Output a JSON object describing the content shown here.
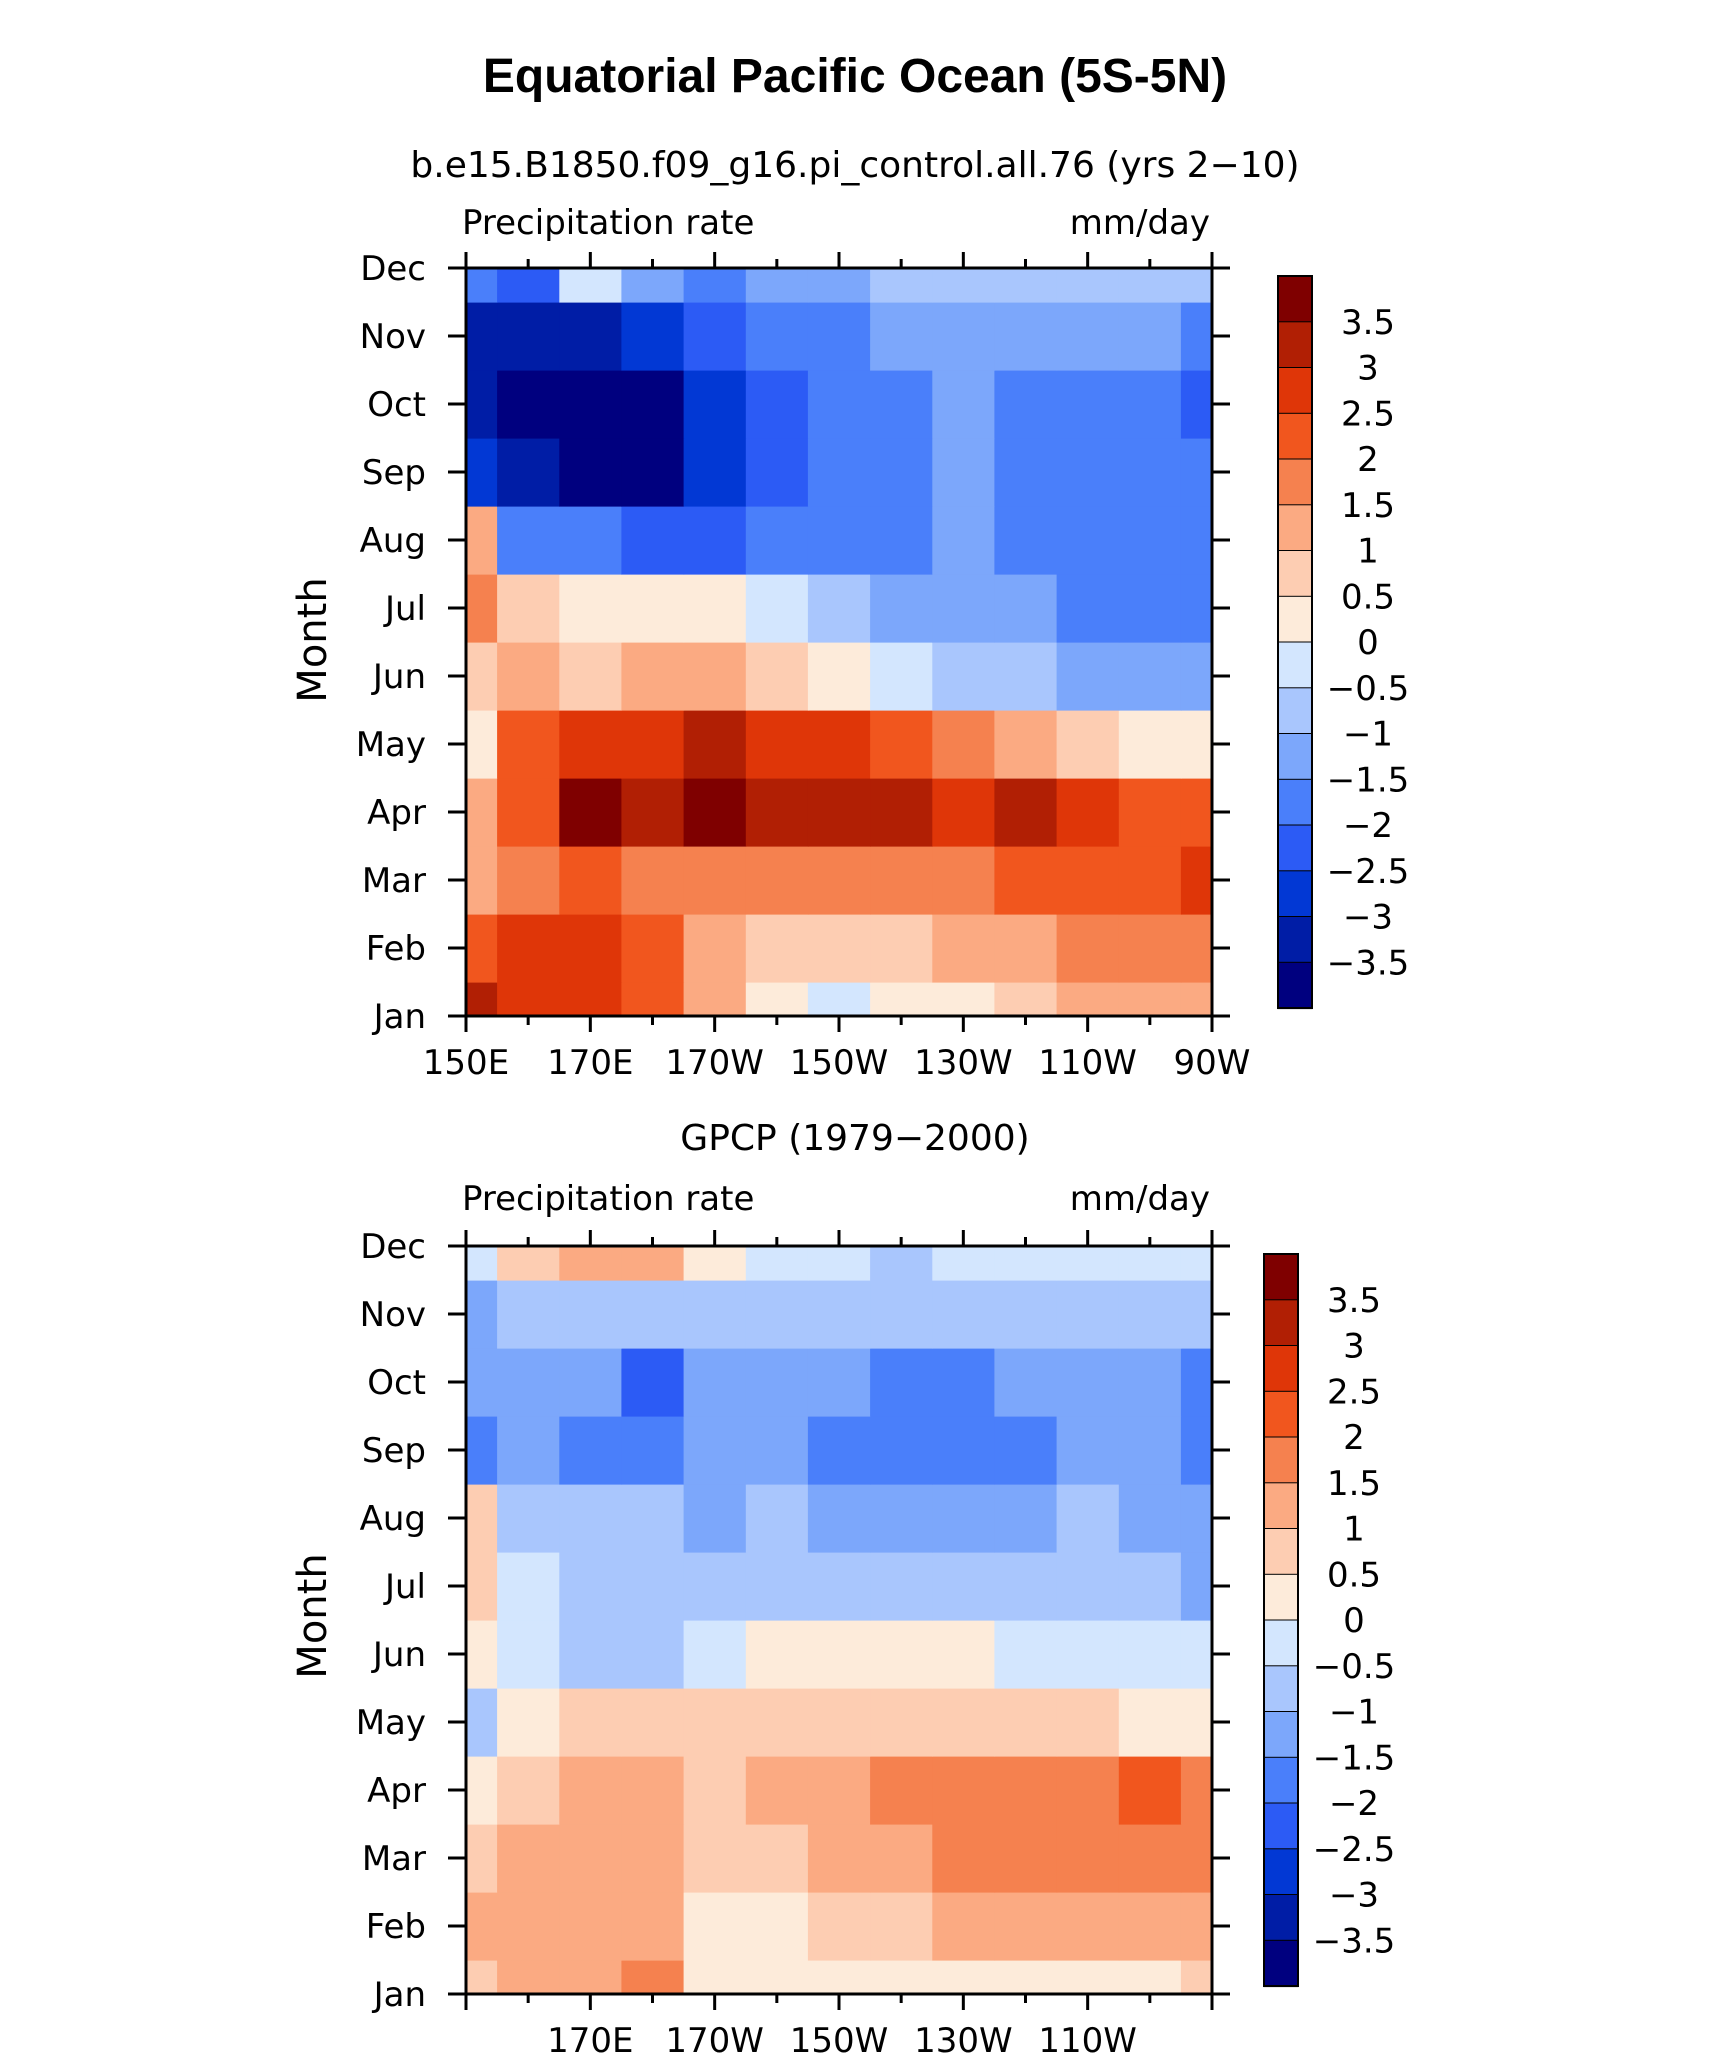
{
  "title": "Equatorial Pacific Ocean (5S-5N)",
  "colormap": {
    "colors": [
      "#00007f",
      "#001da6",
      "#0238d4",
      "#2c5bf5",
      "#4a7ffa",
      "#7ca7fb",
      "#a9c6fd",
      "#d3e6fe",
      "#fdebda",
      "#fdcdb2",
      "#fbaa82",
      "#f5814f",
      "#f1561e",
      "#df3608",
      "#b11f04",
      "#7f0000"
    ],
    "labels": [
      "3.5",
      "3",
      "2.5",
      "2",
      "1.5",
      "1",
      "0.5",
      "0",
      "−0.5",
      "−1",
      "−1.5",
      "−2",
      "−2.5",
      "−3",
      "−3.5"
    ]
  },
  "chart_data": [
    {
      "type": "heatmap",
      "title": "b.e15.B1850.f09_g16.pi_control.all.76 (yrs 2−10)",
      "left_label": "Precipitation rate",
      "right_label": "mm/day",
      "ylabel": "Month",
      "xlabel": "",
      "x_ticks": [
        "150E",
        "170E",
        "170W",
        "150W",
        "130W",
        "110W",
        "90W"
      ],
      "y_ticks": [
        "Jan",
        "Feb",
        "Mar",
        "Apr",
        "May",
        "Jun",
        "Jul",
        "Aug",
        "Sep",
        "Oct",
        "Nov",
        "Dec"
      ],
      "xlim": [
        150,
        270
      ],
      "ylim": [
        1,
        12
      ],
      "x": [
        150,
        160,
        170,
        180,
        190,
        200,
        210,
        220,
        230,
        240,
        250,
        260,
        270
      ],
      "y": [
        "Jan",
        "Feb",
        "Mar",
        "Apr",
        "May",
        "Jun",
        "Jul",
        "Aug",
        "Sep",
        "Oct",
        "Nov",
        "Dec"
      ],
      "z": [
        [
          3.2,
          2.9,
          2.6,
          2.0,
          1.0,
          0.2,
          -0.2,
          0.0,
          0.4,
          0.8,
          1.0,
          1.2,
          1.3
        ],
        [
          2.0,
          2.6,
          2.8,
          2.0,
          1.2,
          0.6,
          0.6,
          0.8,
          1.0,
          1.2,
          1.5,
          1.7,
          1.8
        ],
        [
          1.2,
          1.8,
          2.3,
          1.7,
          1.8,
          1.6,
          1.6,
          1.7,
          1.8,
          2.0,
          2.2,
          2.3,
          2.6
        ],
        [
          1.4,
          2.3,
          3.7,
          3.2,
          3.8,
          3.4,
          3.2,
          3.0,
          2.9,
          3.1,
          2.6,
          2.2,
          2.4
        ],
        [
          0.3,
          2.3,
          2.9,
          2.8,
          3.0,
          2.9,
          2.6,
          2.2,
          1.8,
          1.2,
          0.9,
          0.4,
          0.2
        ],
        [
          0.8,
          1.3,
          0.9,
          1.4,
          1.2,
          0.8,
          0.4,
          -0.2,
          -0.7,
          -1.0,
          -1.2,
          -1.3,
          -1.3
        ],
        [
          1.6,
          0.6,
          0.3,
          0.4,
          0.3,
          -0.4,
          -0.8,
          -1.1,
          -1.3,
          -1.5,
          -1.6,
          -1.6,
          -2.0
        ],
        [
          1.0,
          -1.6,
          -1.9,
          -2.1,
          -2.3,
          -2.0,
          -1.6,
          -1.6,
          -1.5,
          -1.6,
          -1.6,
          -1.7,
          -1.9
        ],
        [
          -2.6,
          -3.4,
          -3.8,
          -3.6,
          -2.9,
          -2.2,
          -1.8,
          -1.6,
          -1.5,
          -1.6,
          -1.6,
          -1.7,
          -1.8
        ],
        [
          -3.4,
          -3.9,
          -4.0,
          -3.6,
          -2.8,
          -2.2,
          -1.9,
          -1.6,
          -1.5,
          -1.6,
          -1.7,
          -1.8,
          -2.1
        ],
        [
          -3.2,
          -3.4,
          -3.3,
          -2.9,
          -2.4,
          -2.0,
          -1.8,
          -1.5,
          -1.3,
          -1.2,
          -1.2,
          -1.3,
          -1.6
        ],
        [
          -1.8,
          -2.1,
          -0.2,
          -1.3,
          -1.6,
          -1.4,
          -1.1,
          -0.9,
          -0.8,
          -0.8,
          -0.8,
          -0.7,
          -0.6
        ]
      ]
    },
    {
      "type": "heatmap",
      "title": "GPCP (1979−2000)",
      "left_label": "Precipitation rate",
      "right_label": "mm/day",
      "ylabel": "Month",
      "xlabel": "",
      "x_ticks": [
        "170E",
        "170W",
        "150W",
        "130W",
        "110W"
      ],
      "y_ticks": [
        "Jan",
        "Feb",
        "Mar",
        "Apr",
        "May",
        "Jun",
        "Jul",
        "Aug",
        "Sep",
        "Oct",
        "Nov",
        "Dec"
      ],
      "xlim": [
        150,
        270
      ],
      "ylim": [
        1,
        12
      ],
      "x": [
        150,
        160,
        170,
        180,
        190,
        200,
        210,
        220,
        230,
        240,
        250,
        260,
        270
      ],
      "y": [
        "Jan",
        "Feb",
        "Mar",
        "Apr",
        "May",
        "Jun",
        "Jul",
        "Aug",
        "Sep",
        "Oct",
        "Nov",
        "Dec"
      ],
      "z": [
        [
          0.8,
          1.0,
          1.2,
          1.8,
          0.3,
          0.2,
          0.1,
          0.2,
          0.3,
          0.3,
          0.4,
          0.4,
          0.5
        ],
        [
          1.2,
          1.3,
          1.1,
          1.3,
          0.4,
          0.4,
          0.7,
          0.9,
          1.0,
          1.1,
          1.2,
          1.3,
          1.4
        ],
        [
          0.9,
          1.1,
          1.2,
          1.3,
          0.5,
          0.7,
          1.2,
          1.4,
          1.6,
          1.8,
          1.7,
          1.9,
          1.7
        ],
        [
          0.4,
          0.9,
          1.3,
          1.2,
          0.8,
          1.0,
          1.2,
          1.6,
          1.7,
          1.9,
          1.7,
          2.0,
          1.6
        ],
        [
          -0.6,
          0.3,
          0.5,
          0.5,
          0.7,
          0.9,
          0.9,
          0.9,
          0.8,
          0.7,
          0.5,
          0.3,
          0.2
        ],
        [
          0.3,
          -0.2,
          -0.6,
          -0.8,
          -0.5,
          0.1,
          0.2,
          0.2,
          0.0,
          -0.2,
          -0.3,
          -0.4,
          -0.5
        ],
        [
          0.6,
          -0.3,
          -0.7,
          -0.9,
          -0.8,
          -0.6,
          -0.6,
          -0.7,
          -0.8,
          -0.9,
          -0.9,
          -1.0,
          -1.3
        ],
        [
          0.8,
          -0.8,
          -1.0,
          -1.0,
          -1.1,
          -1.0,
          -1.2,
          -1.4,
          -1.4,
          -1.3,
          -1.0,
          -1.2,
          -1.5
        ],
        [
          -1.6,
          -1.3,
          -1.6,
          -2.0,
          -1.3,
          -1.2,
          -1.6,
          -1.6,
          -1.6,
          -1.6,
          -1.1,
          -1.4,
          -1.6
        ],
        [
          -1.2,
          -1.2,
          -1.3,
          -2.1,
          -1.3,
          -1.1,
          -1.4,
          -1.6,
          -1.6,
          -1.4,
          -1.1,
          -1.5,
          -1.6
        ],
        [
          -1.1,
          -1.0,
          -0.8,
          -0.9,
          -0.9,
          -0.8,
          -0.8,
          -0.7,
          -0.7,
          -0.7,
          -0.7,
          -0.8,
          -1.0
        ],
        [
          -0.4,
          0.6,
          1.4,
          1.0,
          0.2,
          -0.3,
          -0.4,
          -0.6,
          -0.5,
          -0.5,
          -0.4,
          -0.4,
          -0.4
        ]
      ]
    }
  ]
}
